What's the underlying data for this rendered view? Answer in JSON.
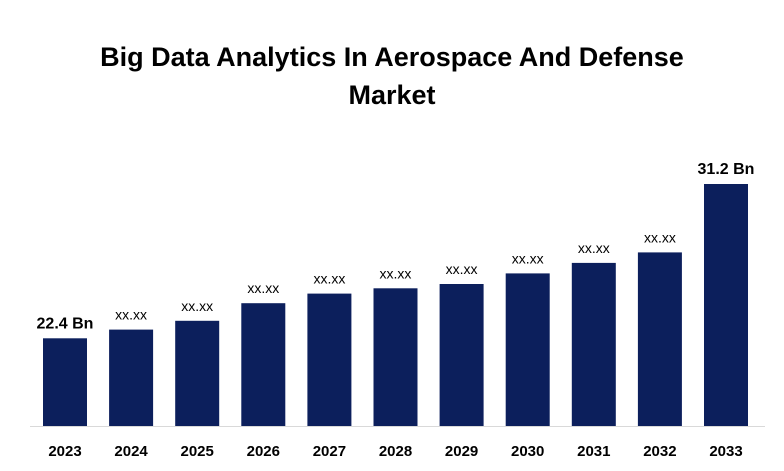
{
  "title_lines": [
    "Big Data Analytics In Aerospace And Defense",
    "Market"
  ],
  "chart_data": {
    "type": "bar",
    "title": "Big Data Analytics In Aerospace And Defense Market",
    "categories": [
      "2023",
      "2024",
      "2025",
      "2026",
      "2027",
      "2028",
      "2029",
      "2030",
      "2031",
      "2032",
      "2033"
    ],
    "values": [
      22.4,
      22.9,
      23.4,
      24.4,
      24.95,
      25.25,
      25.5,
      26.1,
      26.7,
      27.3,
      31.2
    ],
    "data_labels": [
      "22.4 Bn",
      "xx.xx",
      "xx.xx",
      "xx.xx",
      "xx.xx",
      "xx.xx",
      "xx.xx",
      "xx.xx",
      "xx.xx",
      "xx.xx",
      "31.2 Bn"
    ],
    "bar_color": "#0c1f5c",
    "ylim": [
      17.4,
      31.2
    ],
    "grid": false,
    "legend": "none",
    "xlabel": "",
    "ylabel": ""
  }
}
